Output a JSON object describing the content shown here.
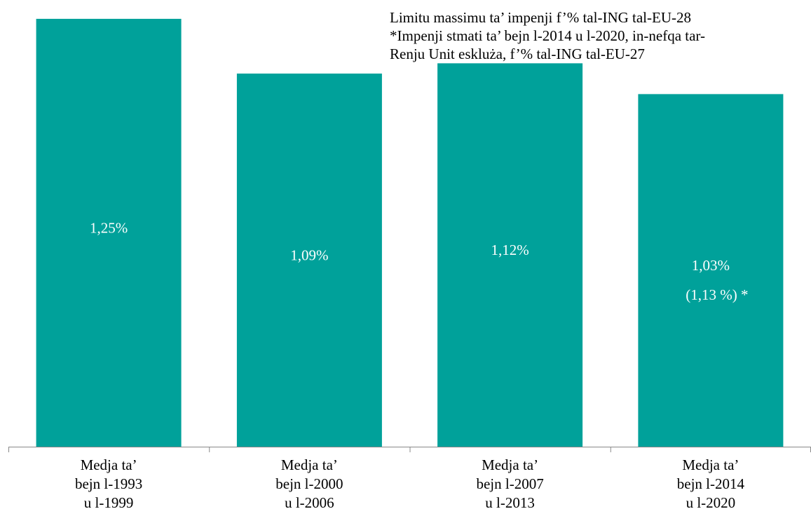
{
  "chart_data": {
    "type": "bar",
    "categories": [
      [
        "Medja ta’",
        "bejn l-1993",
        "u l-1999"
      ],
      [
        "Medja ta’",
        "bejn l-2000",
        "u l-2006"
      ],
      [
        "Medja ta’",
        "bejn l-2007",
        "u l-2013"
      ],
      [
        "Medja ta’",
        "bejn l-2014",
        "u l-2020"
      ]
    ],
    "values": [
      1.25,
      1.09,
      1.12,
      1.03
    ],
    "data_labels": [
      "1,25%",
      "1,09%",
      "1,12%",
      "1,03%"
    ],
    "secondary_labels": [
      "",
      "",
      "",
      "(1,13 %) *"
    ],
    "annotation_lines": [
      "Limitu massimu ta’ impenji f’% tal-ING tal-EU-28",
      "*Impenji stmati ta’ bejn l-2014 u l-2020, in-nefqa tar-",
      "Renju Unit eskluża, f’% tal-ING tal-EU-27"
    ],
    "ylim": [
      0,
      1.305
    ],
    "grid": false,
    "legend": "none",
    "colors": {
      "bar": "#00A19A",
      "label": "#ffffff",
      "axis": "#888888"
    }
  }
}
